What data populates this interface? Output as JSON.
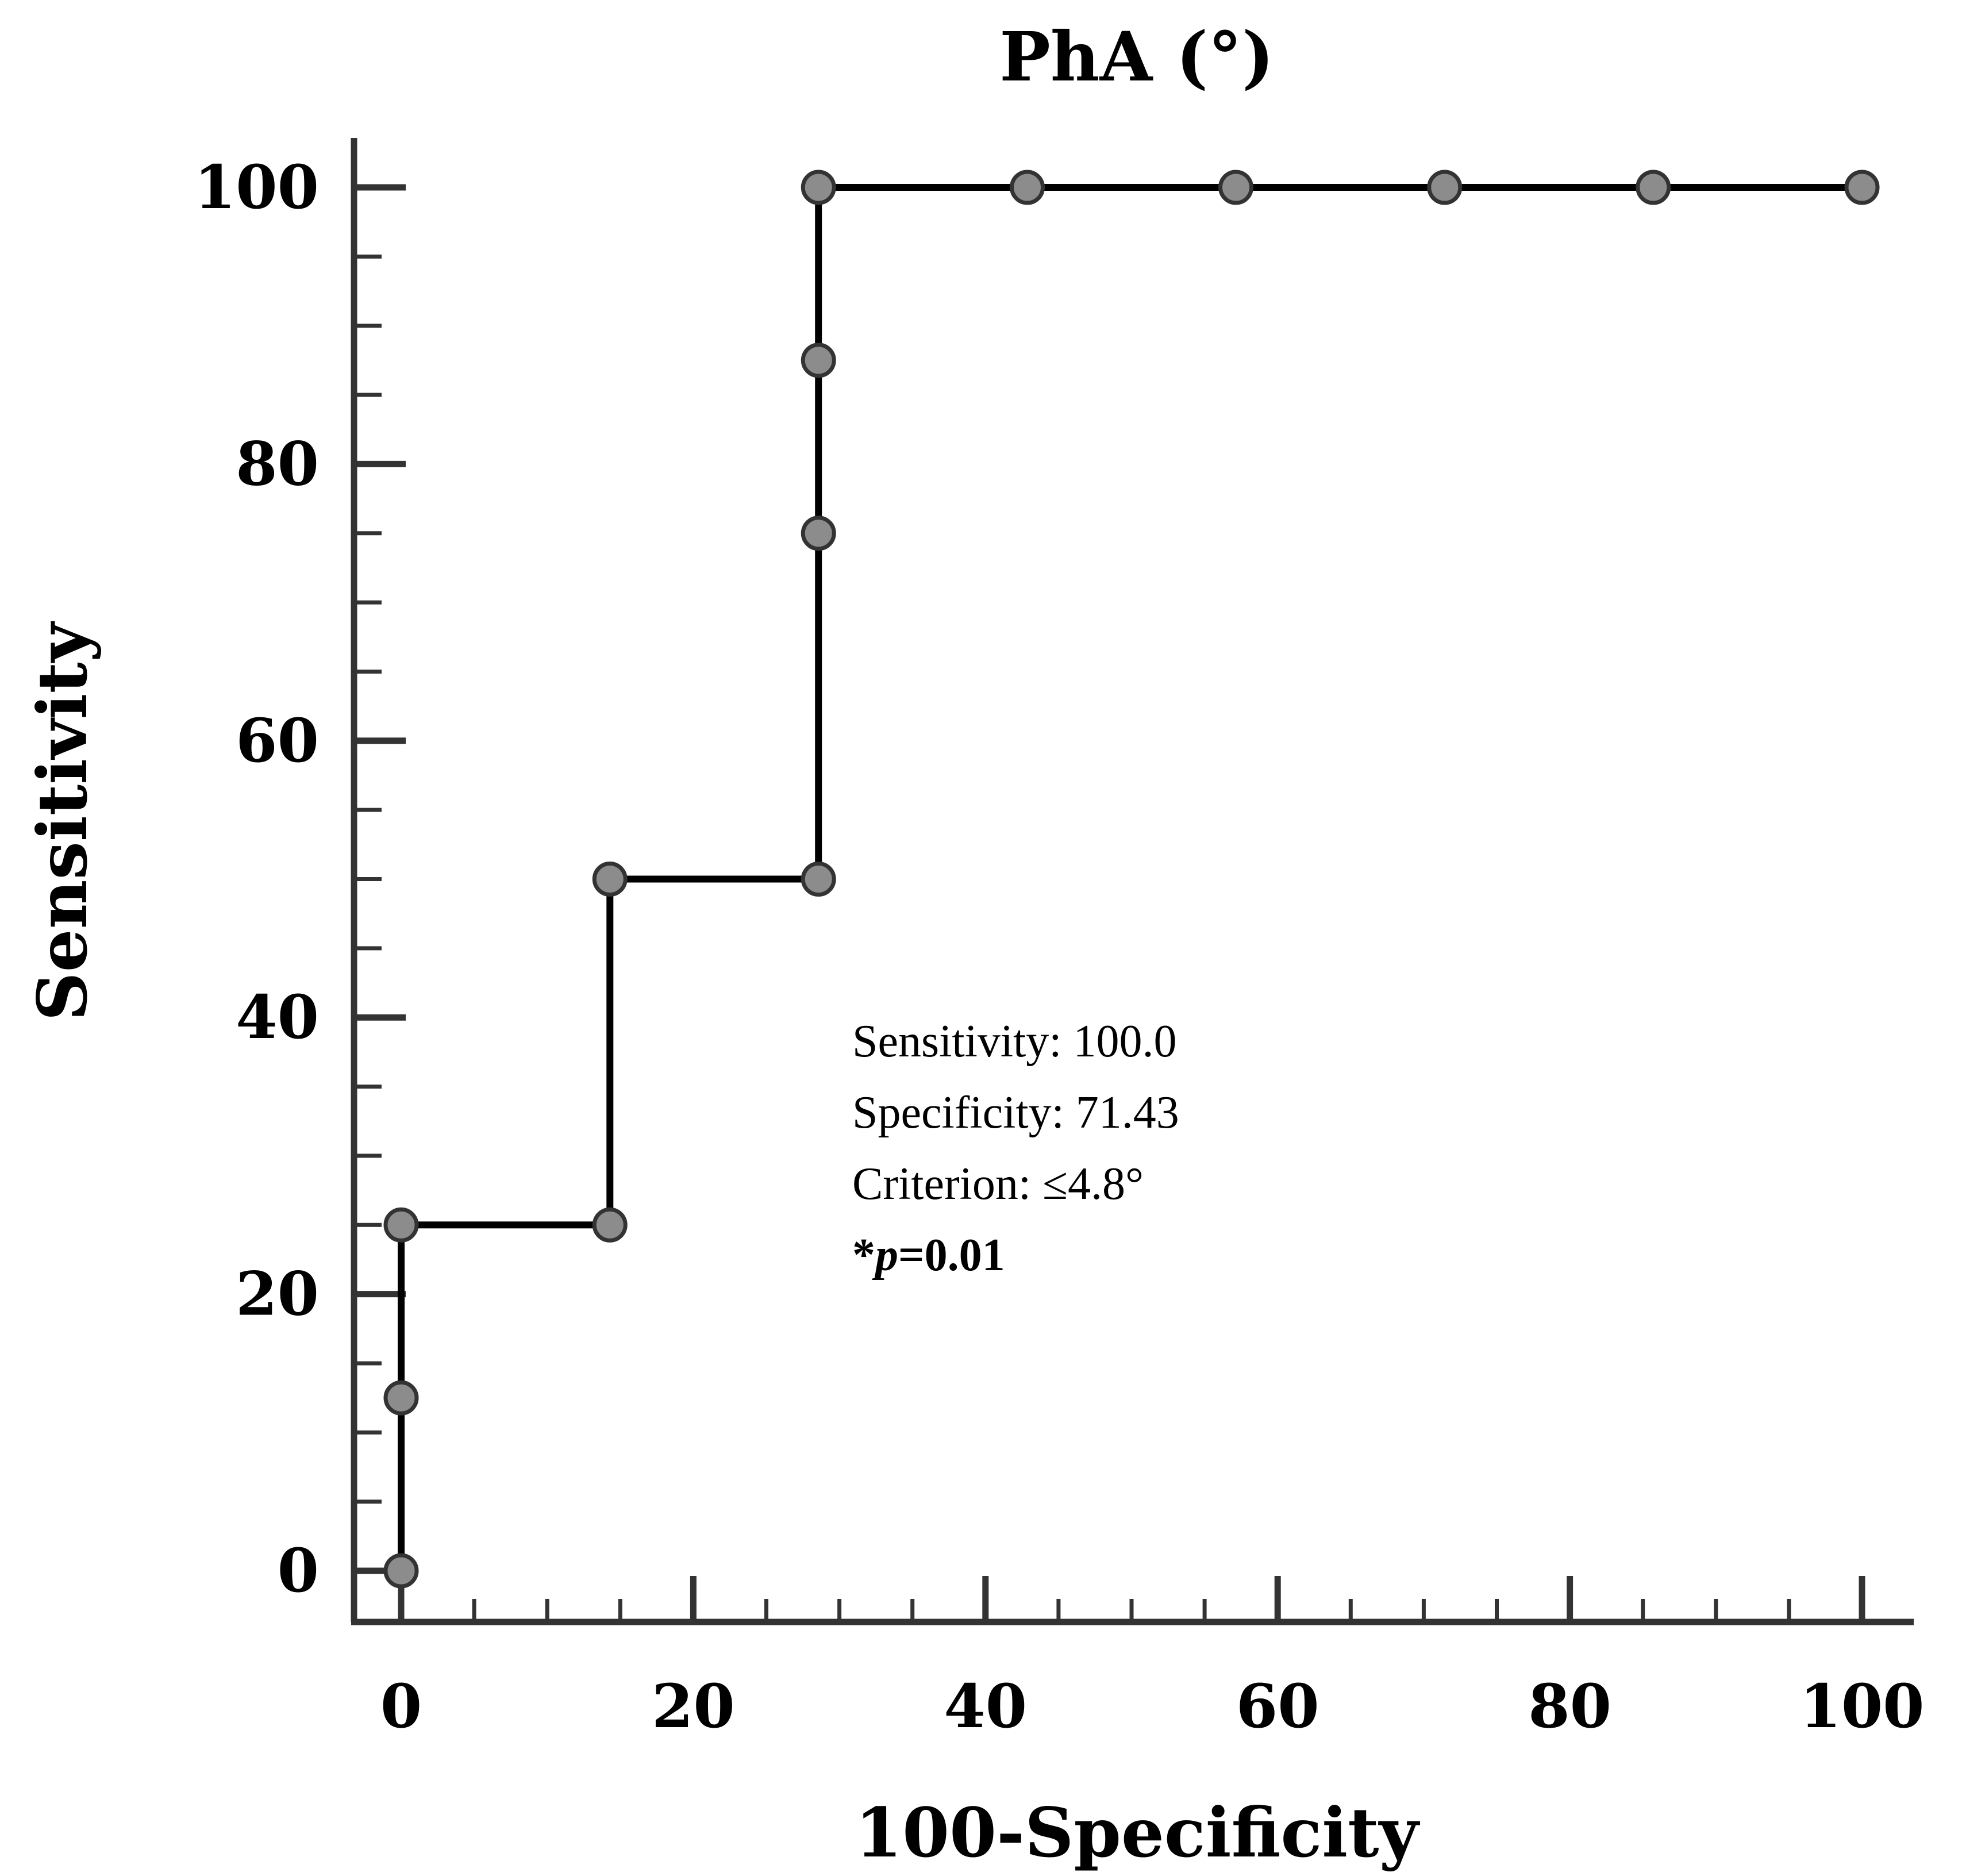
{
  "chart_data": {
    "type": "line",
    "title": "PhA (°)",
    "xlabel": "100-Specificity",
    "ylabel": "Sensitivity",
    "xlim": [
      0,
      100
    ],
    "ylim": [
      0,
      100
    ],
    "x_ticks": [
      0,
      20,
      40,
      60,
      80,
      100
    ],
    "y_ticks": [
      0,
      20,
      40,
      60,
      80,
      100
    ],
    "x_tick_labels": [
      "0",
      "20",
      "40",
      "60",
      "80",
      "100"
    ],
    "y_tick_labels": [
      "0",
      "20",
      "40",
      "60",
      "80",
      "100"
    ],
    "x_minor_step": 5,
    "y_minor_step": 5,
    "grid": false,
    "step": true,
    "series": [
      {
        "name": "PhA (°)",
        "x": [
          0,
          0,
          0,
          14.29,
          14.29,
          28.57,
          28.57,
          28.57,
          28.57,
          42.86,
          57.14,
          71.43,
          85.71,
          100
        ],
        "y": [
          0,
          12.5,
          25,
          25,
          50,
          50,
          75,
          87.5,
          100,
          100,
          100,
          100,
          100,
          100
        ]
      }
    ],
    "annotation": {
      "sensitivity": "Sensitivity: 100.0",
      "specificity": "Specificity: 71.43",
      "criterion": "Criterion: ≤4.8°",
      "p_star": "*",
      "p_symbol": "p",
      "p_value": "=0.01"
    },
    "colors": {
      "line": "#000000",
      "marker_fill": "#8c8c8c",
      "marker_stroke": "#333333",
      "axis": "#333333"
    }
  }
}
